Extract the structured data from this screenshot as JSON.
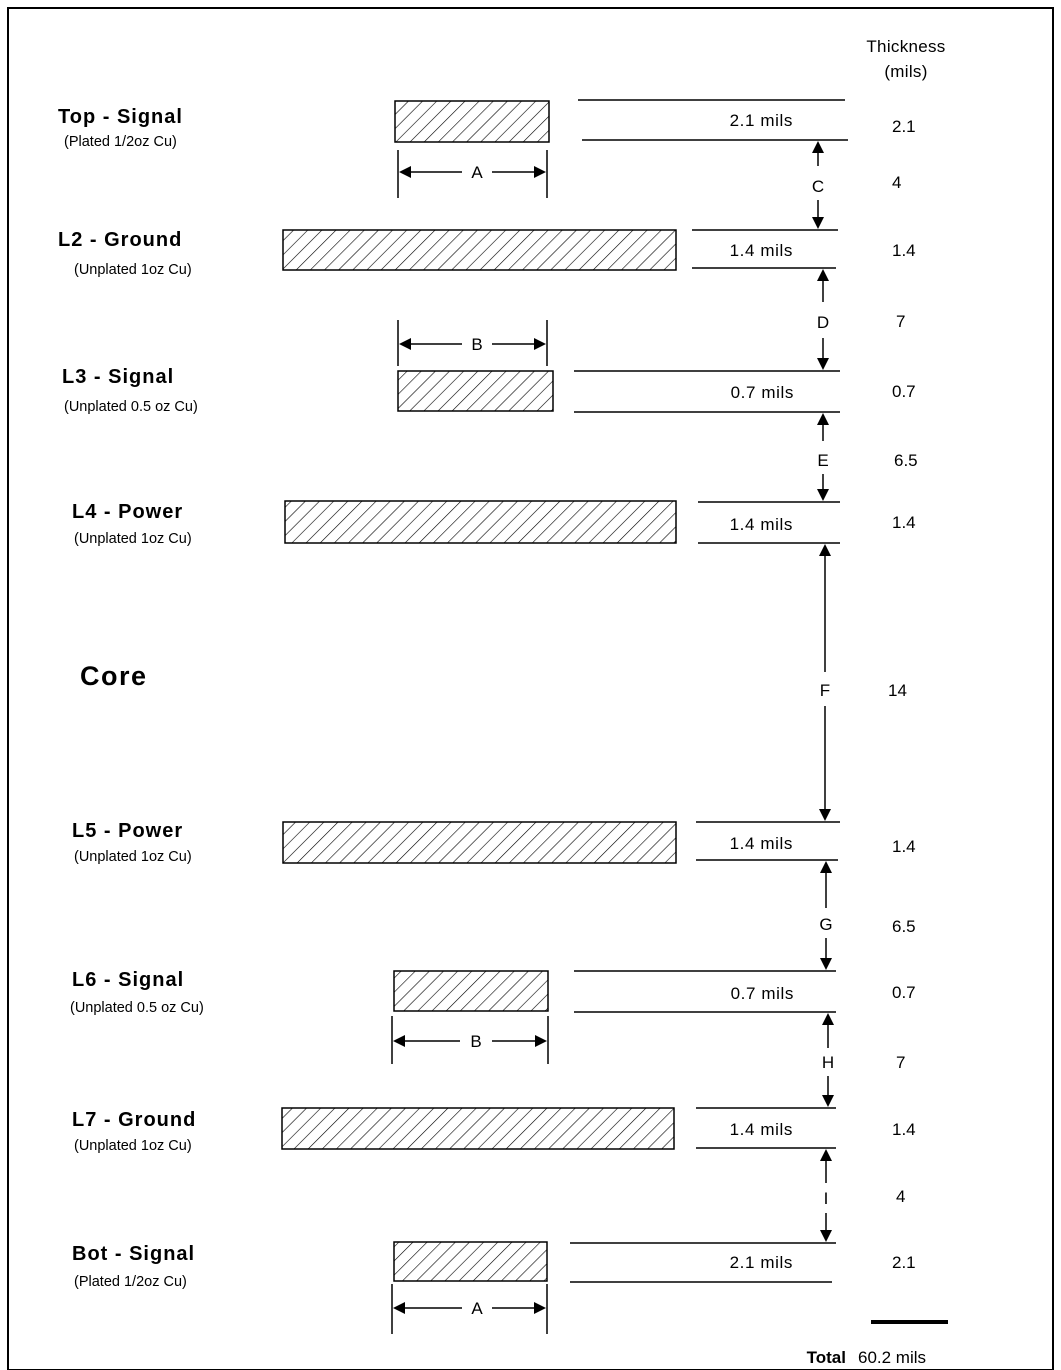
{
  "header": {
    "thickness_line1": "Thickness",
    "thickness_line2": "(mils)"
  },
  "core_label": "Core",
  "layers": [
    {
      "id": "top",
      "name": "Top - Signal",
      "sub": "(Plated 1/2oz Cu)",
      "mils_label": "2.1 mils",
      "thickness": "2.1"
    },
    {
      "id": "l2",
      "name": "L2 - Ground",
      "sub": "(Unplated 1oz Cu)",
      "mils_label": "1.4 mils",
      "thickness": "1.4"
    },
    {
      "id": "l3",
      "name": "L3 - Signal",
      "sub": "(Unplated 0.5 oz Cu)",
      "mils_label": "0.7 mils",
      "thickness": "0.7"
    },
    {
      "id": "l4",
      "name": "L4 - Power",
      "sub": "(Unplated 1oz Cu)",
      "mils_label": "1.4 mils",
      "thickness": "1.4"
    },
    {
      "id": "l5",
      "name": "L5 - Power",
      "sub": "(Unplated 1oz Cu)",
      "mils_label": "1.4 mils",
      "thickness": "1.4"
    },
    {
      "id": "l6",
      "name": "L6 - Signal",
      "sub": "(Unplated 0.5 oz Cu)",
      "mils_label": "0.7 mils",
      "thickness": "0.7"
    },
    {
      "id": "l7",
      "name": "L7 - Ground",
      "sub": "(Unplated 1oz Cu)",
      "mils_label": "1.4 mils",
      "thickness": "1.4"
    },
    {
      "id": "bot",
      "name": "Bot - Signal",
      "sub": "(Plated 1/2oz Cu)",
      "mils_label": "2.1 mils",
      "thickness": "2.1"
    }
  ],
  "dielectrics": [
    {
      "label": "C",
      "thickness": "4"
    },
    {
      "label": "D",
      "thickness": "7"
    },
    {
      "label": "E",
      "thickness": "6.5"
    },
    {
      "label": "F",
      "thickness": "14"
    },
    {
      "label": "G",
      "thickness": "6.5"
    },
    {
      "label": "H",
      "thickness": "7"
    },
    {
      "label": "I",
      "thickness": "4"
    }
  ],
  "width_dims": [
    {
      "label": "A"
    },
    {
      "label": "B"
    },
    {
      "label": "B"
    },
    {
      "label": "A"
    }
  ],
  "total": {
    "label": "Total",
    "value": "60.2 mils"
  }
}
